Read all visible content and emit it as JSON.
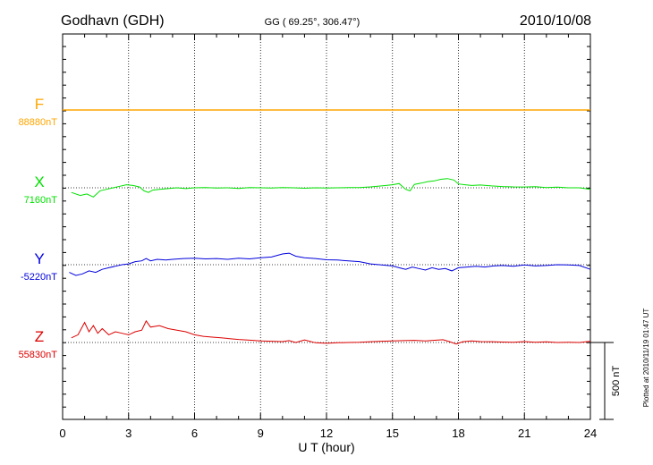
{
  "header": {
    "station": "Godhavn (GDH)",
    "coords": "GG ( 69.25°, 306.47°)",
    "date": "2010/10/08"
  },
  "footer": {
    "plotted": "Plotted at 2010/11/19 01:47 UT"
  },
  "chart_data": {
    "type": "line",
    "xlabel": "U T (hour)",
    "xlim": [
      0,
      24
    ],
    "x_ticks": [
      "0",
      "3",
      "6",
      "9",
      "12",
      "15",
      "18",
      "21",
      "24"
    ],
    "grid": true,
    "scale_bar": {
      "label": "500 nT",
      "value_nT": 500
    },
    "series": [
      {
        "name": "F",
        "baseline_label": "88880nT",
        "baseline_nT": 88880,
        "color": "#ffa500",
        "x": [
          0,
          24
        ],
        "y": [
          88880,
          88880
        ]
      },
      {
        "name": "X",
        "baseline_label": "7160nT",
        "baseline_nT": 7160,
        "color": "#00e000",
        "x": [
          0.4,
          0.8,
          1.1,
          1.4,
          1.7,
          2.0,
          2.3,
          2.6,
          2.9,
          3.2,
          3.5,
          3.7,
          3.9,
          4.1,
          4.4,
          4.8,
          5.2,
          5.6,
          6.0,
          6.5,
          7.0,
          7.5,
          8.0,
          8.5,
          9.0,
          9.5,
          10.0,
          10.5,
          11.0,
          11.5,
          12.0,
          12.5,
          13.0,
          13.5,
          14.0,
          14.5,
          15.0,
          15.3,
          15.6,
          15.8,
          16.0,
          16.3,
          16.6,
          16.9,
          17.2,
          17.5,
          17.8,
          18.0,
          18.3,
          18.6,
          19.0,
          19.5,
          20.0,
          20.5,
          21.0,
          21.5,
          22.0,
          22.5,
          23.0,
          23.5,
          24.0
        ],
        "y": [
          7130,
          7110,
          7120,
          7100,
          7140,
          7150,
          7160,
          7170,
          7180,
          7175,
          7165,
          7140,
          7130,
          7145,
          7150,
          7155,
          7160,
          7155,
          7160,
          7162,
          7158,
          7160,
          7156,
          7162,
          7160,
          7158,
          7161,
          7160,
          7157,
          7160,
          7158,
          7160,
          7161,
          7162,
          7166,
          7172,
          7180,
          7188,
          7150,
          7140,
          7182,
          7190,
          7200,
          7205,
          7215,
          7220,
          7210,
          7185,
          7180,
          7175,
          7178,
          7172,
          7168,
          7166,
          7165,
          7167,
          7162,
          7164,
          7160,
          7160,
          7150
        ]
      },
      {
        "name": "Y",
        "baseline_label": "-5220nT",
        "baseline_nT": -5220,
        "color": "#0000dd",
        "x": [
          0.3,
          0.6,
          0.9,
          1.2,
          1.5,
          1.8,
          2.1,
          2.4,
          2.7,
          3.0,
          3.3,
          3.6,
          3.8,
          4.0,
          4.3,
          4.7,
          5.0,
          5.5,
          6.0,
          6.5,
          7.0,
          7.5,
          8.0,
          8.5,
          9.0,
          9.5,
          10.0,
          10.3,
          10.6,
          11.0,
          11.5,
          12.0,
          12.5,
          13.0,
          13.5,
          14.0,
          14.5,
          15.0,
          15.3,
          15.6,
          15.9,
          16.2,
          16.5,
          16.8,
          17.1,
          17.4,
          17.7,
          18.0,
          18.4,
          18.8,
          19.2,
          19.6,
          20.0,
          20.5,
          21.0,
          21.5,
          22.0,
          22.5,
          23.0,
          23.5,
          24.0
        ],
        "y": [
          -5270,
          -5290,
          -5280,
          -5260,
          -5270,
          -5250,
          -5240,
          -5230,
          -5220,
          -5215,
          -5200,
          -5195,
          -5180,
          -5195,
          -5185,
          -5190,
          -5185,
          -5180,
          -5178,
          -5182,
          -5180,
          -5185,
          -5178,
          -5182,
          -5175,
          -5170,
          -5150,
          -5145,
          -5165,
          -5175,
          -5180,
          -5188,
          -5190,
          -5195,
          -5200,
          -5215,
          -5222,
          -5228,
          -5240,
          -5250,
          -5235,
          -5245,
          -5255,
          -5240,
          -5250,
          -5245,
          -5260,
          -5240,
          -5235,
          -5230,
          -5235,
          -5228,
          -5225,
          -5230,
          -5222,
          -5228,
          -5225,
          -5220,
          -5222,
          -5225,
          -5250
        ]
      },
      {
        "name": "Z",
        "baseline_label": "55830nT",
        "baseline_nT": 55830,
        "color": "#dd0000",
        "x": [
          0.4,
          0.7,
          1.0,
          1.2,
          1.4,
          1.6,
          1.8,
          2.1,
          2.4,
          2.7,
          3.0,
          3.3,
          3.6,
          3.8,
          4.0,
          4.4,
          4.8,
          5.2,
          5.6,
          6.0,
          6.4,
          6.8,
          7.2,
          7.6,
          8.0,
          8.5,
          9.0,
          9.5,
          10.0,
          10.3,
          10.6,
          11.0,
          11.5,
          12.0,
          12.5,
          13.0,
          13.5,
          14.0,
          14.5,
          15.0,
          15.5,
          16.0,
          16.5,
          17.0,
          17.3,
          17.6,
          17.9,
          18.2,
          18.6,
          19.0,
          19.5,
          20.0,
          20.5,
          21.0,
          21.5,
          22.0,
          22.5,
          23.0,
          23.5,
          24.0
        ],
        "y": [
          55860,
          55880,
          55960,
          55900,
          55940,
          55890,
          55920,
          55880,
          55900,
          55890,
          55880,
          55900,
          55910,
          55970,
          55930,
          55940,
          55920,
          55910,
          55900,
          55880,
          55870,
          55865,
          55860,
          55855,
          55850,
          55845,
          55840,
          55838,
          55836,
          55842,
          55830,
          55846,
          55828,
          55825,
          55828,
          55830,
          55832,
          55835,
          55838,
          55840,
          55842,
          55844,
          55840,
          55845,
          55848,
          55835,
          55820,
          55835,
          55840,
          55836,
          55835,
          55833,
          55832,
          55836,
          55832,
          55834,
          55830,
          55832,
          55830,
          55838
        ]
      }
    ]
  }
}
